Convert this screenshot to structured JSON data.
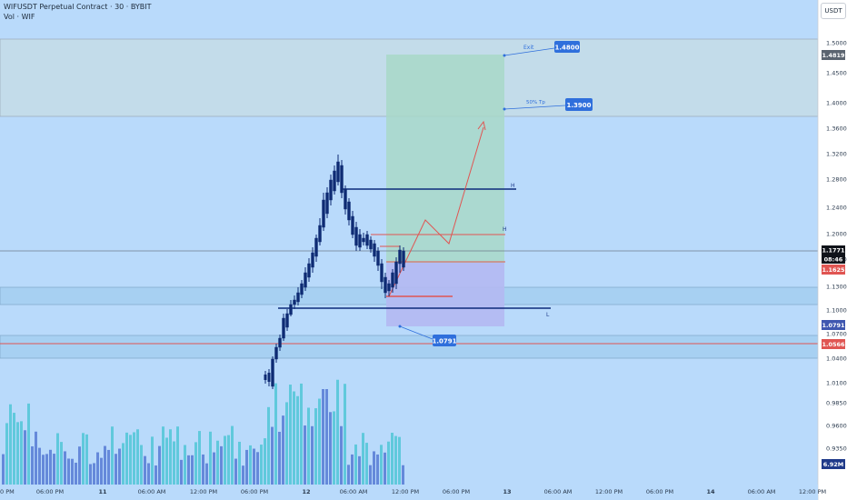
{
  "header": {
    "title": "WIFUSDT Perpetual Contract · 30 · BYBIT",
    "volume_label": "Vol · WIF",
    "currency_button": "USDT"
  },
  "price_axis": {
    "ticks": [
      "1.5000",
      "1.4500",
      "1.4000",
      "1.3600",
      "1.3200",
      "1.2800",
      "1.2400",
      "1.2000",
      "1.1600",
      "1.1300",
      "1.1000",
      "1.0700",
      "1.0400",
      "1.0100",
      "0.9850",
      "0.9600",
      "0.9350"
    ],
    "badges": {
      "top": "1.4819",
      "last": "1.1771",
      "countdown": "08:46",
      "red1": "1.1625",
      "support": "1.0791",
      "red2": "1.0566",
      "volume": "6.92M"
    }
  },
  "time_axis": {
    "labels": [
      "0 PM",
      "06:00 PM",
      "11",
      "06:00 AM",
      "12:00 PM",
      "06:00 PM",
      "12",
      "06:00 AM",
      "12:00 PM",
      "06:00 PM",
      "13",
      "06:00 AM",
      "12:00 PM",
      "06:00 PM",
      "14",
      "06:00 AM",
      "12:00 PM"
    ]
  },
  "annotations": {
    "exit_label": "Exit",
    "exit_value": "1.4800",
    "tp_label": "50% Tp",
    "tp_value": "1.3900",
    "stop_value": "1.0791",
    "h1": "H",
    "h2": "H",
    "l1": "L"
  },
  "colors": {
    "background": "#b9dafb",
    "candle_up": "#2fc2b3",
    "candle_down": "#0e2b73",
    "target_zone": "#a8d8c8",
    "stop_zone": "#b4b8f2",
    "red_line": "#e05552",
    "navy_line": "#0c2a7a",
    "badge_blue": "#2f6fdc"
  }
}
